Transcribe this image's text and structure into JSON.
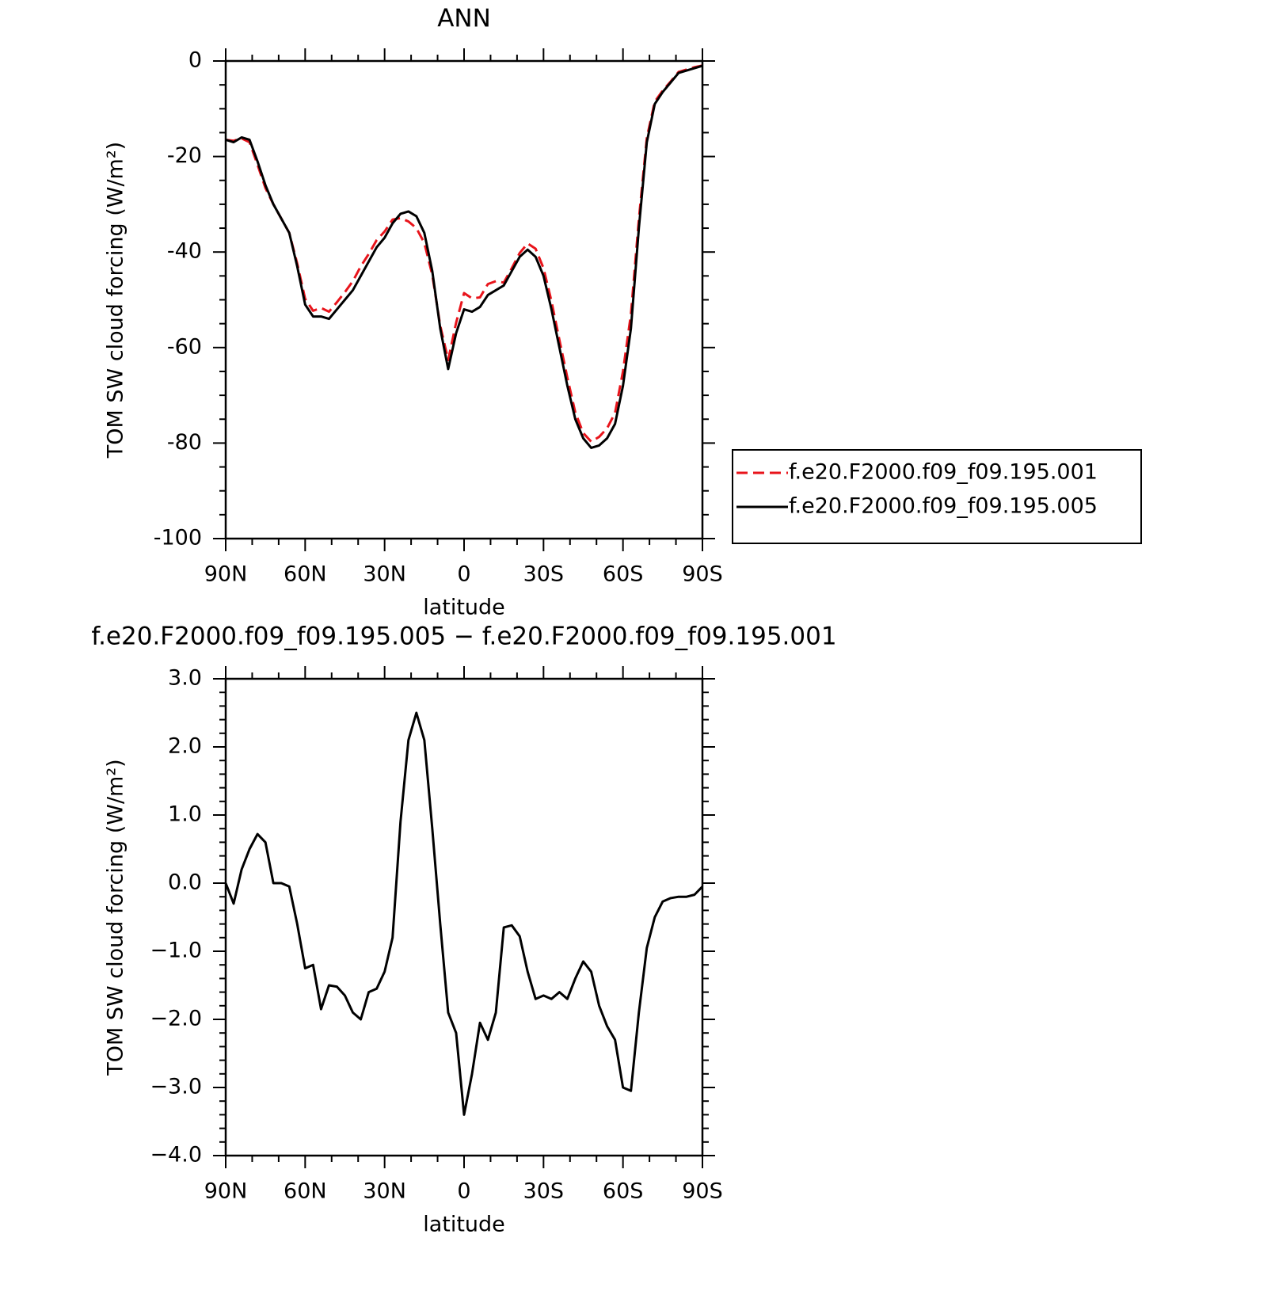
{
  "chart_data": [
    {
      "type": "line",
      "title": "ANN",
      "xlabel": "latitude",
      "ylabel": "TOM SW cloud forcing (W/m²)",
      "x": [
        90,
        87,
        84,
        81,
        78,
        75,
        72,
        69,
        66,
        63,
        60,
        57,
        54,
        51,
        48,
        45,
        42,
        39,
        36,
        33,
        30,
        27,
        24,
        21,
        18,
        15,
        12,
        9,
        6,
        3,
        0,
        -3,
        -6,
        -9,
        -12,
        -15,
        -18,
        -21,
        -24,
        -27,
        -30,
        -33,
        -36,
        -39,
        -42,
        -45,
        -48,
        -51,
        -54,
        -57,
        -60,
        -63,
        -66,
        -69,
        -72,
        -75,
        -78,
        -81,
        -84,
        -87,
        -90
      ],
      "xlim": [
        90,
        -90
      ],
      "xticks": [
        {
          "value": 90,
          "label": "90N"
        },
        {
          "value": 60,
          "label": "60N"
        },
        {
          "value": 30,
          "label": "30N"
        },
        0,
        {
          "value": -30,
          "label": "30S"
        },
        {
          "value": -60,
          "label": "60S"
        },
        {
          "value": -90,
          "label": "90S"
        }
      ],
      "ylim": [
        -100,
        0
      ],
      "yticks": [
        -100,
        -80,
        -60,
        -40,
        -20,
        0
      ],
      "legend": "right",
      "series": [
        {
          "name": "f.e20.F2000.f09_f09.195.001",
          "color": "#e8141b",
          "dash": true,
          "values": [
            -16.5,
            -16.7,
            -16.2,
            -17.0,
            -21.7,
            -26.6,
            -30,
            -33,
            -36,
            -42.4,
            -49.8,
            -52.3,
            -51.7,
            -52.5,
            -50.5,
            -48.4,
            -46.1,
            -43,
            -40.4,
            -37.5,
            -35.7,
            -33.2,
            -32.9,
            -33.6,
            -35,
            -38.1,
            -44.8,
            -55.4,
            -62.6,
            -54.8,
            -48.6,
            -49.7,
            -49.5,
            -46.7,
            -46.1,
            -46.4,
            -43.4,
            -40.2,
            -38.2,
            -39.3,
            -43.4,
            -50.3,
            -58.4,
            -66.3,
            -73.6,
            -77.9,
            -79.7,
            -78.7,
            -76.9,
            -73.7,
            -65,
            -53,
            -33.1,
            -16.1,
            -8.5,
            -6.2,
            -4.3,
            -2.3,
            -1.8,
            -1.3,
            -0.95
          ]
        },
        {
          "name": "f.e20.F2000.f09_f09.195.005",
          "color": "#000000",
          "dash": false,
          "values": [
            -16.5,
            -17,
            -16,
            -16.5,
            -21,
            -26,
            -30,
            -33,
            -36,
            -43,
            -51,
            -53.5,
            -53.5,
            -54,
            -52,
            -50,
            -48,
            -45,
            -42,
            -39,
            -37,
            -34,
            -32,
            -31.5,
            -32.5,
            -36,
            -44,
            -56,
            -64.5,
            -57,
            -52,
            -52.5,
            -51.5,
            -49,
            -48,
            -47,
            -44,
            -41,
            -39.5,
            -41,
            -45,
            -52,
            -60,
            -68,
            -75,
            -79,
            -81,
            -80.5,
            -79,
            -76,
            -68,
            -56,
            -35,
            -17,
            -9,
            -6.5,
            -4.5,
            -2.5,
            -2,
            -1.5,
            -1
          ]
        }
      ]
    },
    {
      "type": "line",
      "title": "f.e20.F2000.f09_f09.195.005 − f.e20.F2000.f09_f09.195.001",
      "xlabel": "latitude",
      "ylabel": "TOM SW cloud forcing (W/m²)",
      "x": [
        90,
        87,
        84,
        81,
        78,
        75,
        72,
        69,
        66,
        63,
        60,
        57,
        54,
        51,
        48,
        45,
        42,
        39,
        36,
        33,
        30,
        27,
        24,
        21,
        18,
        15,
        12,
        9,
        6,
        3,
        0,
        -3,
        -6,
        -9,
        -12,
        -15,
        -18,
        -21,
        -24,
        -27,
        -30,
        -33,
        -36,
        -39,
        -42,
        -45,
        -48,
        -51,
        -54,
        -57,
        -60,
        -63,
        -66,
        -69,
        -72,
        -75,
        -78,
        -81,
        -84,
        -87,
        -90
      ],
      "xlim": [
        90,
        -90
      ],
      "xticks": [
        {
          "value": 90,
          "label": "90N"
        },
        {
          "value": 60,
          "label": "60N"
        },
        {
          "value": 30,
          "label": "30N"
        },
        0,
        {
          "value": -30,
          "label": "30S"
        },
        {
          "value": -60,
          "label": "60S"
        },
        {
          "value": -90,
          "label": "90S"
        }
      ],
      "ylim": [
        -4,
        3
      ],
      "yticks": [
        {
          "value": -4,
          "label": "−4.0"
        },
        {
          "value": -3,
          "label": "−3.0"
        },
        {
          "value": -2,
          "label": "−2.0"
        },
        {
          "value": -1,
          "label": "−1.0"
        },
        {
          "value": 0,
          "label": "0.0"
        },
        {
          "value": 1,
          "label": "1.0"
        },
        {
          "value": 2,
          "label": "2.0"
        },
        {
          "value": 3,
          "label": "3.0"
        }
      ],
      "series": [
        {
          "color": "#000000",
          "dash": false,
          "values": [
            0.0,
            -0.3,
            0.2,
            0.5,
            0.72,
            0.6,
            0.0,
            0.0,
            -0.05,
            -0.6,
            -1.25,
            -1.2,
            -1.85,
            -1.5,
            -1.52,
            -1.65,
            -1.9,
            -2.0,
            -1.6,
            -1.55,
            -1.3,
            -0.8,
            0.9,
            2.1,
            2.5,
            2.1,
            0.8,
            -0.6,
            -1.9,
            -2.2,
            -3.4,
            -2.8,
            -2.05,
            -2.3,
            -1.9,
            -0.65,
            -0.62,
            -0.78,
            -1.3,
            -1.7,
            -1.65,
            -1.7,
            -1.6,
            -1.7,
            -1.4,
            -1.15,
            -1.3,
            -1.8,
            -2.1,
            -2.3,
            -3.0,
            -3.05,
            -1.9,
            -0.95,
            -0.5,
            -0.27,
            -0.22,
            -0.2,
            -0.2,
            -0.17,
            -0.05
          ]
        }
      ]
    }
  ]
}
